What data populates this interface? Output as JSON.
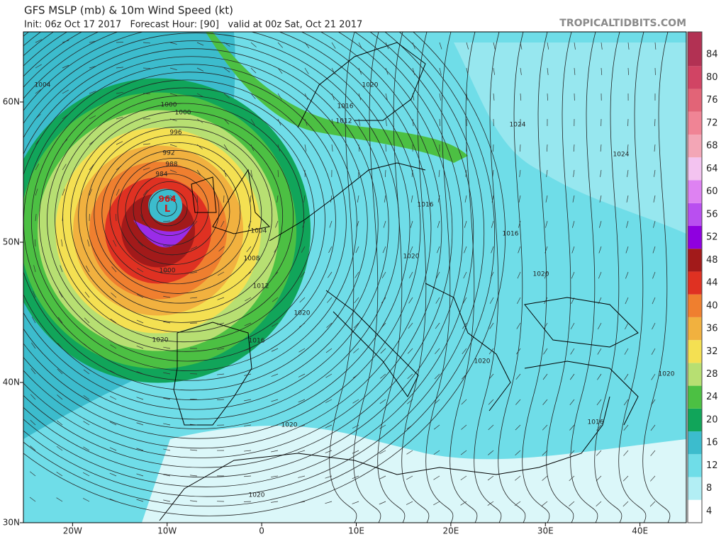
{
  "header": {
    "title": "GFS MSLP (mb) & 10m Wind Speed (kt)",
    "subtitle": "Init: 06z Oct 17 2017   Forecast Hour: [90]   valid at 00z Sat, Oct 21 2017",
    "brand": "TROPICALTIDBITS.COM"
  },
  "chart_data": {
    "type": "map",
    "xlim": [
      -25.2,
      44.9
    ],
    "ylim": [
      30,
      65
    ],
    "xticks": [
      {
        "value": -20,
        "label": "20W"
      },
      {
        "value": -10,
        "label": "10W"
      },
      0,
      {
        "value": 10,
        "label": "10E"
      },
      {
        "value": 20,
        "label": "20E"
      },
      {
        "value": 30,
        "label": "30E"
      },
      {
        "value": 40,
        "label": "40E"
      }
    ],
    "yticks": [
      {
        "value": 30,
        "label": "30N"
      },
      {
        "value": 40,
        "label": "40N"
      },
      {
        "value": 50,
        "label": "50N"
      },
      {
        "value": 60,
        "label": "60N"
      }
    ],
    "colorbar": {
      "levels": [
        4,
        8,
        12,
        16,
        20,
        24,
        28,
        32,
        36,
        40,
        44,
        48,
        52,
        56,
        60,
        64,
        68,
        72,
        76,
        80,
        84
      ],
      "colors": [
        "#ffffff",
        "#b2eef4",
        "#6fdde8",
        "#3cbccd",
        "#11a55a",
        "#4cc043",
        "#b7df72",
        "#f4e052",
        "#f1b13f",
        "#ef7f2f",
        "#df3122",
        "#a21a1a",
        "#8f00e0",
        "#b94ff0",
        "#de82f2",
        "#f3c3f0",
        "#f3a6b6",
        "#f08495",
        "#e26477",
        "#d14464",
        "#b23153"
      ]
    },
    "low_center": 964,
    "isobar_labels": [
      1004,
      1000,
      1000,
      996,
      992,
      988,
      984,
      1000,
      1004,
      1008,
      1012,
      1016,
      1020,
      1020,
      1016,
      1020,
      1020,
      1012,
      1016,
      1020,
      1024,
      1024,
      1016,
      1020,
      1020,
      1020,
      1020,
      1016
    ]
  }
}
